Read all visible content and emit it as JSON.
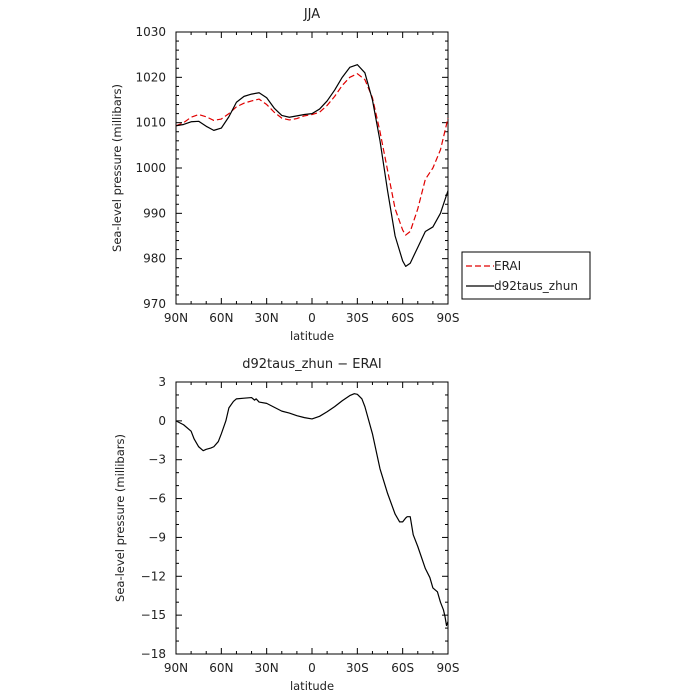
{
  "chart_data": [
    {
      "type": "line",
      "title": "JJA",
      "xlabel": "latitude",
      "ylabel": "Sea-level pressure (millibars)",
      "x_ticks": [
        -90,
        -60,
        -30,
        0,
        30,
        60,
        90
      ],
      "x_tick_labels": [
        "90N",
        "60N",
        "30N",
        "0",
        "30S",
        "60S",
        "90S"
      ],
      "xlim": [
        -90,
        90
      ],
      "ylim": [
        970,
        1030
      ],
      "y_ticks": [
        970,
        980,
        990,
        1000,
        1010,
        1020,
        1030
      ],
      "y_tick_labels": [
        "970",
        "980",
        "990",
        "1000",
        "1010",
        "1020",
        "1030"
      ],
      "legend_position": "right",
      "series": [
        {
          "name": "ERAI",
          "color": "#e00000",
          "dash": "dashed",
          "x": [
            -90,
            -85,
            -80,
            -75,
            -70,
            -65,
            -60,
            -55,
            -50,
            -45,
            -40,
            -35,
            -30,
            -25,
            -20,
            -15,
            -10,
            -5,
            0,
            5,
            10,
            15,
            20,
            25,
            30,
            35,
            40,
            45,
            50,
            55,
            60,
            62,
            65,
            70,
            75,
            80,
            85,
            90
          ],
          "y": [
            1009.3,
            1010.0,
            1011.2,
            1011.8,
            1011.3,
            1010.5,
            1010.8,
            1012.0,
            1013.5,
            1014.3,
            1014.8,
            1015.2,
            1014.0,
            1012.3,
            1011.0,
            1010.6,
            1010.9,
            1011.5,
            1011.8,
            1012.3,
            1013.8,
            1015.8,
            1018.2,
            1020.0,
            1020.8,
            1019.5,
            1015.5,
            1008.0,
            999.5,
            991.0,
            986.3,
            985.2,
            986.0,
            991.0,
            997.5,
            1000.0,
            1004.0,
            1011.0
          ]
        },
        {
          "name": "d92taus_zhun",
          "color": "#000000",
          "dash": "solid",
          "x": [
            -90,
            -85,
            -80,
            -75,
            -70,
            -65,
            -60,
            -55,
            -50,
            -45,
            -40,
            -35,
            -30,
            -25,
            -20,
            -15,
            -10,
            -5,
            0,
            5,
            10,
            15,
            20,
            25,
            30,
            35,
            40,
            45,
            50,
            55,
            60,
            62,
            65,
            70,
            75,
            80,
            85,
            90
          ],
          "y": [
            1009.3,
            1009.6,
            1010.2,
            1010.3,
            1009.2,
            1008.3,
            1008.8,
            1011.3,
            1014.5,
            1015.8,
            1016.3,
            1016.6,
            1015.5,
            1013.2,
            1011.6,
            1011.2,
            1011.5,
            1011.8,
            1012.0,
            1013.0,
            1014.8,
            1017.2,
            1020.0,
            1022.2,
            1022.8,
            1021.0,
            1015.0,
            1006.0,
            995.0,
            985.0,
            979.5,
            978.3,
            979.0,
            982.5,
            986.0,
            987.0,
            990.0,
            995.0
          ]
        }
      ]
    },
    {
      "type": "line",
      "title": "d92taus_zhun − ERAI",
      "xlabel": "latitude",
      "ylabel": "Sea-level pressure (millibars)",
      "x_ticks": [
        -90,
        -60,
        -30,
        0,
        30,
        60,
        90
      ],
      "x_tick_labels": [
        "90N",
        "60N",
        "30N",
        "0",
        "30S",
        "60S",
        "90S"
      ],
      "xlim": [
        -90,
        90
      ],
      "ylim": [
        -18,
        3
      ],
      "y_ticks": [
        -18,
        -15,
        -12,
        -9,
        -6,
        -3,
        0,
        3
      ],
      "y_tick_labels": [
        "−18",
        "−15",
        "−12",
        "−9",
        "−6",
        "−3",
        "0",
        "3"
      ],
      "series": [
        {
          "name": "",
          "color": "#000000",
          "dash": "solid",
          "x": [
            -90,
            -85,
            -80,
            -78,
            -75,
            -72,
            -70,
            -67,
            -65,
            -62,
            -60,
            -57,
            -55,
            -52,
            -50,
            -45,
            -40,
            -38,
            -37,
            -35,
            -30,
            -25,
            -20,
            -15,
            -10,
            -5,
            0,
            5,
            10,
            15,
            20,
            25,
            28,
            30,
            33,
            35,
            40,
            45,
            50,
            55,
            58,
            60,
            62,
            63,
            65,
            67,
            70,
            75,
            78,
            80,
            83,
            85,
            87,
            88,
            89,
            90
          ],
          "y": [
            0.0,
            -0.3,
            -0.8,
            -1.4,
            -2.0,
            -2.3,
            -2.2,
            -2.1,
            -2.0,
            -1.6,
            -1.0,
            0.0,
            1.0,
            1.5,
            1.7,
            1.75,
            1.8,
            1.6,
            1.7,
            1.45,
            1.35,
            1.05,
            0.75,
            0.6,
            0.4,
            0.25,
            0.15,
            0.35,
            0.7,
            1.1,
            1.55,
            1.95,
            2.1,
            2.05,
            1.7,
            1.1,
            -1.0,
            -3.7,
            -5.6,
            -7.2,
            -7.8,
            -7.8,
            -7.5,
            -7.4,
            -7.4,
            -8.8,
            -9.7,
            -11.4,
            -12.1,
            -12.9,
            -13.2,
            -14.0,
            -14.6,
            -15.1,
            -15.8,
            -15.5
          ]
        }
      ]
    }
  ]
}
